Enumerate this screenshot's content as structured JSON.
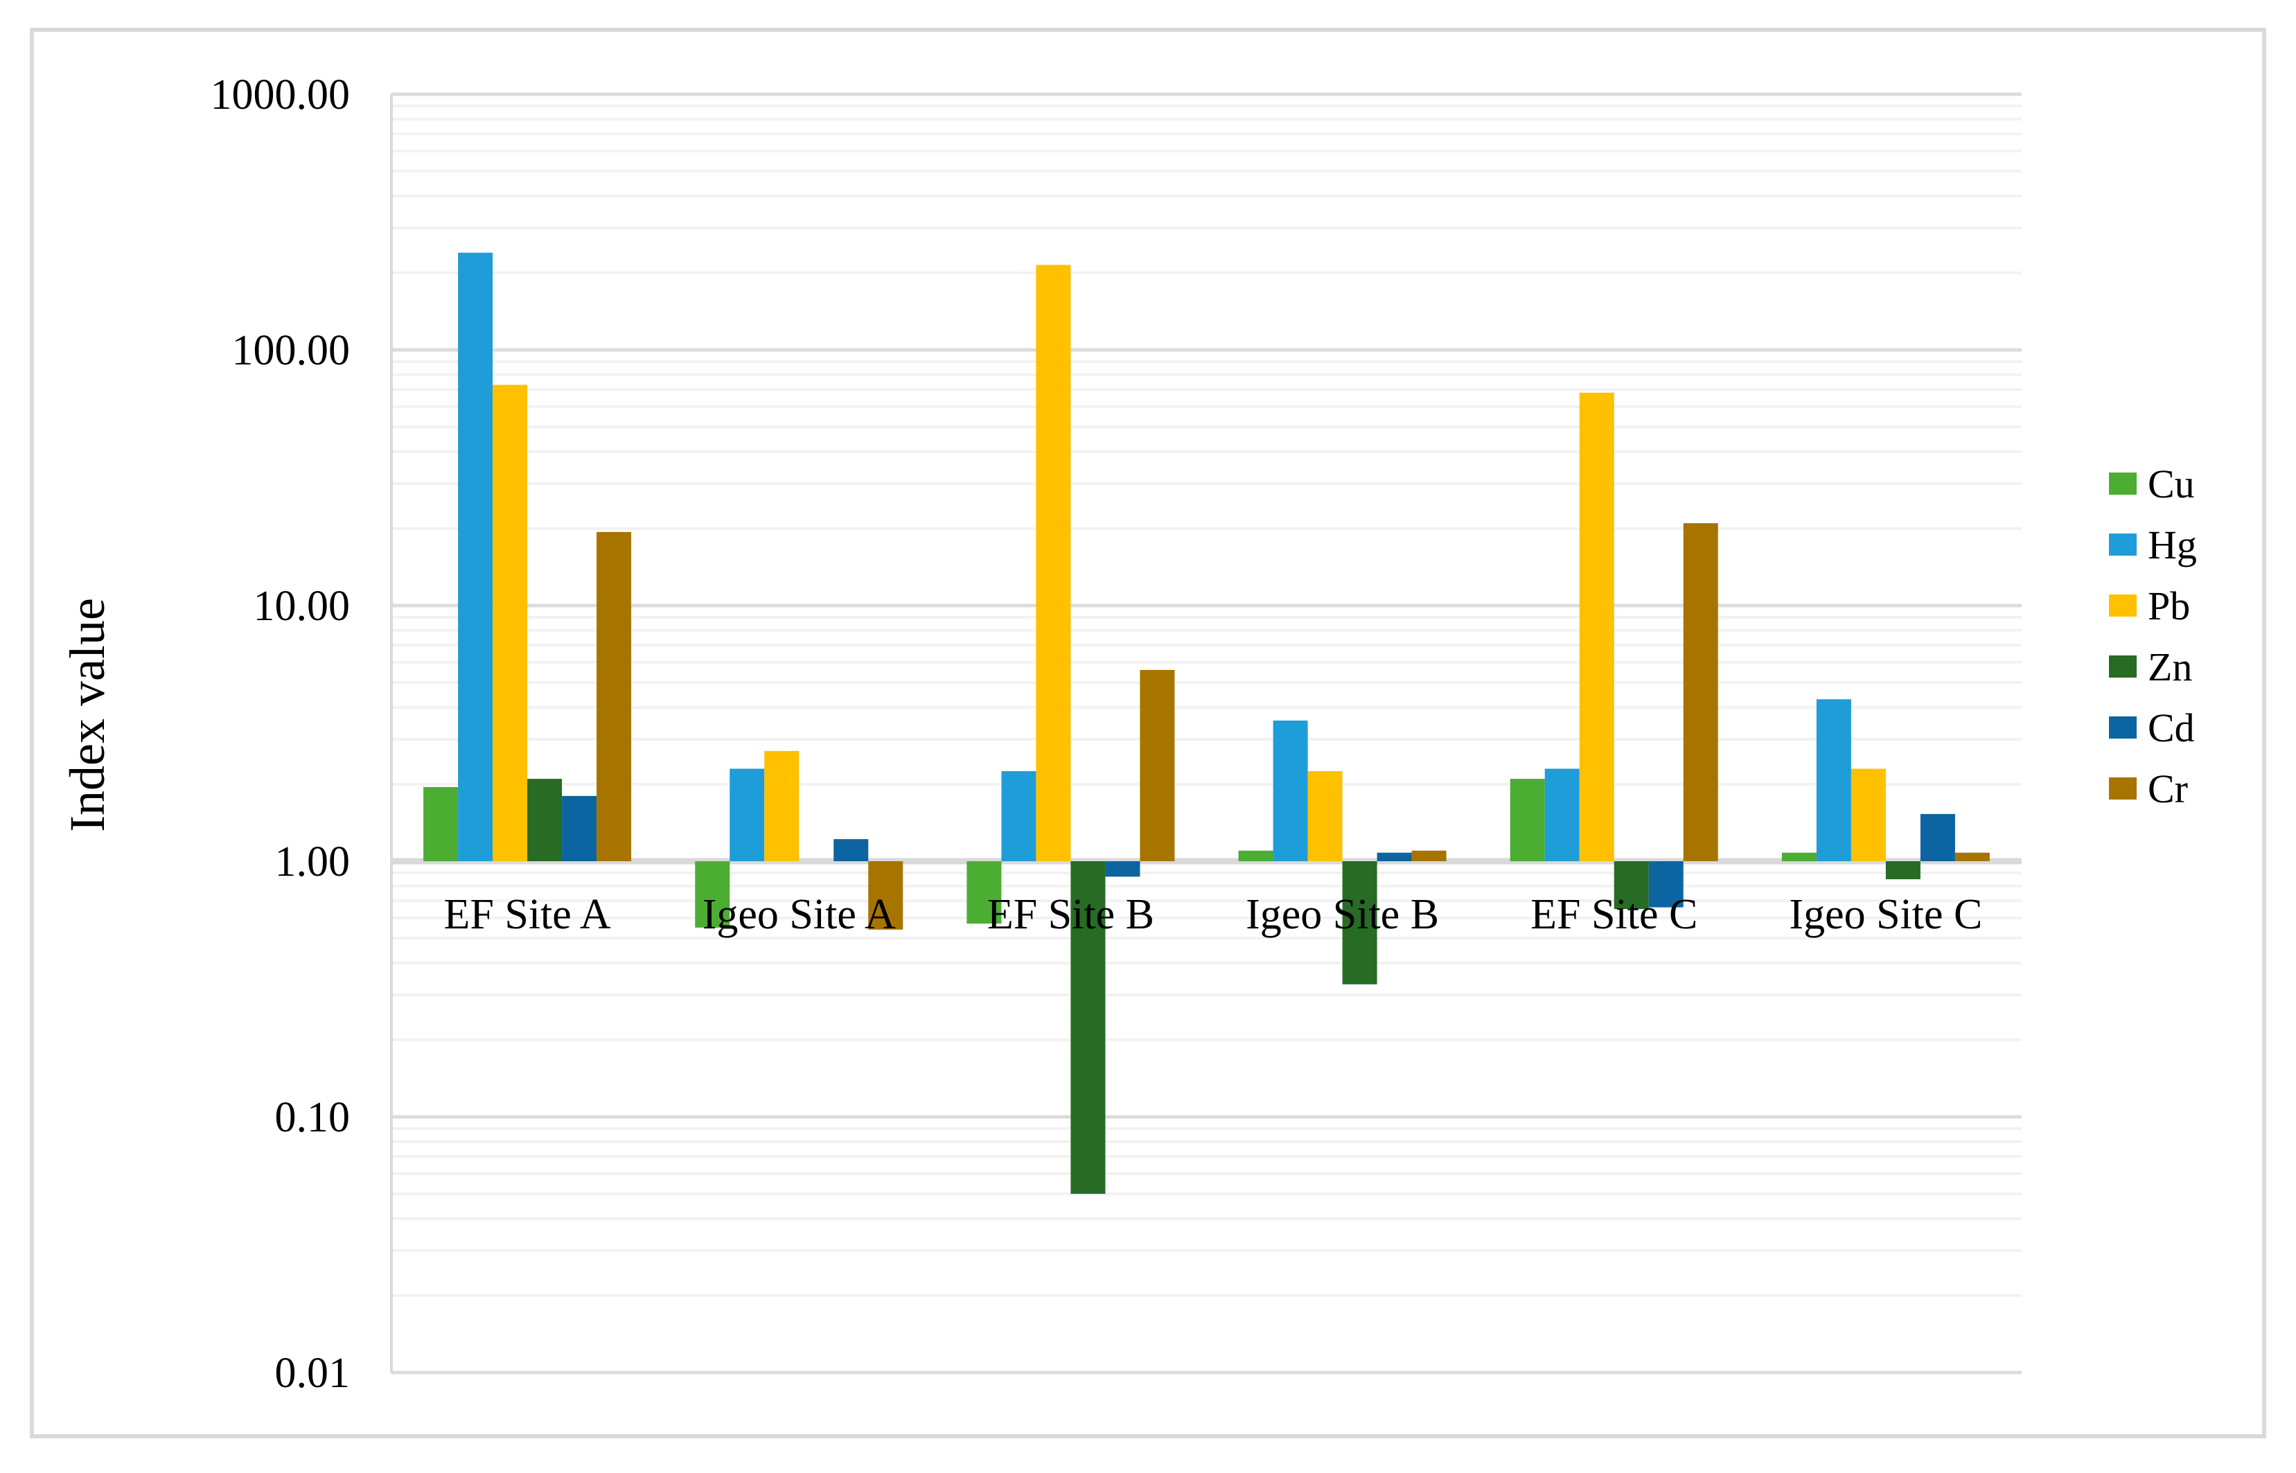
{
  "chart_data": {
    "type": "bar",
    "title": "",
    "ylabel": "Index value",
    "xlabel": "",
    "y_scale": "log10",
    "ylim": [
      0.01,
      1000
    ],
    "grid": "major+minor",
    "legend_position": "right",
    "categories": [
      "EF Site A",
      "Igeo Site A",
      "EF Site B",
      "Igeo Site B",
      "EF Site C",
      "Igeo Site C"
    ],
    "series": [
      {
        "name": "Cu",
        "color": "#4CAD33",
        "values": [
          1.95,
          0.55,
          0.57,
          1.1,
          2.1,
          1.08
        ]
      },
      {
        "name": "Hg",
        "color": "#1F9DD9",
        "values": [
          240,
          2.3,
          2.25,
          3.55,
          2.3,
          4.3
        ]
      },
      {
        "name": "Pb",
        "color": "#FFC000",
        "values": [
          73,
          2.7,
          215,
          2.25,
          68,
          2.3
        ]
      },
      {
        "name": "Zn",
        "color": "#276B25",
        "values": [
          2.1,
          1.0,
          0.05,
          0.33,
          0.65,
          0.85
        ]
      },
      {
        "name": "Cd",
        "color": "#0C64A0",
        "values": [
          1.8,
          1.22,
          0.87,
          1.08,
          0.66,
          1.53
        ]
      },
      {
        "name": "Cr",
        "color": "#A87400",
        "values": [
          19.4,
          0.54,
          5.6,
          1.1,
          21,
          1.08
        ]
      }
    ],
    "y_ticks": [
      {
        "label": "1000.00",
        "value": 1000
      },
      {
        "label": "100.00",
        "value": 100
      },
      {
        "label": "10.00",
        "value": 10
      },
      {
        "label": "1.00",
        "value": 1
      },
      {
        "label": "0.10",
        "value": 0.1
      },
      {
        "label": "0.01",
        "value": 0.01
      }
    ]
  },
  "style": {
    "background": "#FFFFFF",
    "border_color": "#D9D9D9",
    "major_grid_color": "#DCDCDC",
    "minor_grid_color": "#F2F2F2",
    "axis_line_color": "#D9D9D9",
    "text_color": "#000000"
  }
}
